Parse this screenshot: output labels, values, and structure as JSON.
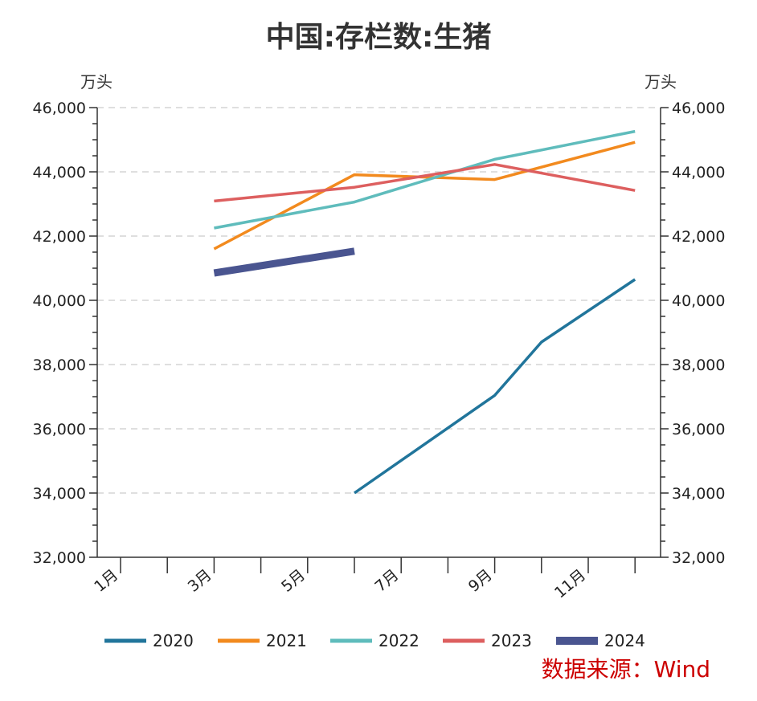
{
  "chart_data": {
    "type": "line",
    "title": "中国:存栏数:生猪",
    "unit_left": "万头",
    "unit_right": "万头",
    "ylim": [
      32000,
      46000
    ],
    "y_ticks": [
      "32,000",
      "34,000",
      "36,000",
      "38,000",
      "40,000",
      "42,000",
      "44,000",
      "46,000"
    ],
    "y_tick_values": [
      32000,
      34000,
      36000,
      38000,
      40000,
      42000,
      44000,
      46000
    ],
    "x_months": [
      1,
      2,
      3,
      4,
      5,
      6,
      7,
      8,
      9,
      10,
      11,
      12
    ],
    "x_tick_labels": [
      "1月",
      "3月",
      "5月",
      "7月",
      "9月",
      "11月"
    ],
    "x_tick_label_months": [
      1,
      3,
      5,
      7,
      9,
      11
    ],
    "grid": true,
    "legend_position": "bottom",
    "series": [
      {
        "name": "2020",
        "color": "#21759b",
        "width": 3.5,
        "points": [
          [
            6,
            34000
          ],
          [
            9,
            37040
          ],
          [
            10,
            38700
          ],
          [
            12,
            40650
          ]
        ]
      },
      {
        "name": "2021",
        "color": "#f28a1e",
        "width": 3.5,
        "points": [
          [
            3,
            41600
          ],
          [
            6,
            43910
          ],
          [
            9,
            43760
          ],
          [
            12,
            44920
          ]
        ]
      },
      {
        "name": "2022",
        "color": "#5fbcbc",
        "width": 3.5,
        "points": [
          [
            3,
            42250
          ],
          [
            6,
            43060
          ],
          [
            9,
            44390
          ],
          [
            12,
            45260
          ]
        ]
      },
      {
        "name": "2023",
        "color": "#dd5f5f",
        "width": 3.5,
        "points": [
          [
            3,
            43090
          ],
          [
            6,
            43520
          ],
          [
            9,
            44230
          ],
          [
            12,
            43420
          ]
        ]
      },
      {
        "name": "2024",
        "color": "#4a5590",
        "width": 9,
        "points": [
          [
            3,
            40850
          ],
          [
            6,
            41530
          ]
        ]
      }
    ],
    "source": "数据来源：Wind"
  }
}
